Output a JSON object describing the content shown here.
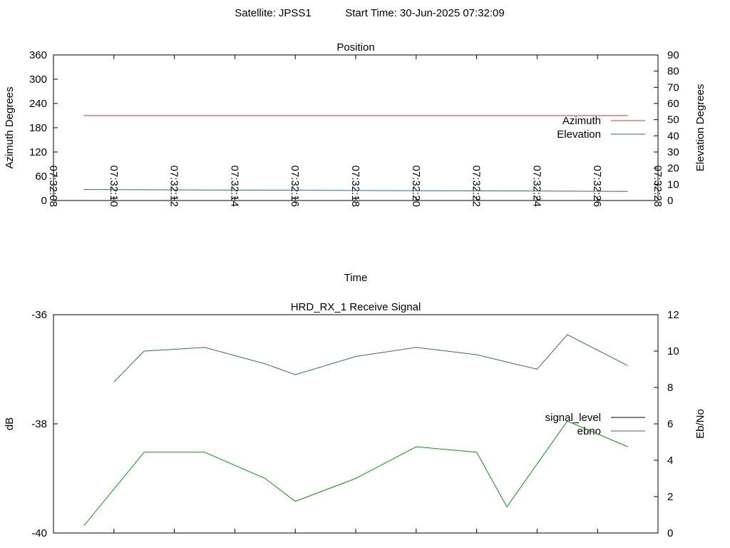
{
  "header": {
    "satellite": "Satellite: JPSS1",
    "start_time": "Start Time: 30-Jun-2025 07:32:09"
  },
  "chart_data": [
    {
      "type": "line",
      "title": "Position",
      "xlabel": "Time",
      "ylabel": "Azimuth Degrees",
      "y2label": "Elevation Degrees",
      "xticks": [
        "07:32:08",
        "07:32:10",
        "07:32:12",
        "07:32:14",
        "07:32:16",
        "07:32:18",
        "07:32:20",
        "07:32:22",
        "07:32:24",
        "07:32:26",
        "07:32:28"
      ],
      "xlim": [
        0,
        20
      ],
      "ylim": [
        0,
        360
      ],
      "yticks": [
        0,
        60,
        120,
        180,
        240,
        300,
        360
      ],
      "y2lim": [
        0,
        90
      ],
      "y2ticks": [
        0,
        10,
        20,
        30,
        40,
        50,
        60,
        70,
        80,
        90
      ],
      "legend_position": "right",
      "series": [
        {
          "name": "Azimuth",
          "color": "#cc3333",
          "axis": "y",
          "x": [
            1,
            19
          ],
          "values": [
            210,
            210
          ]
        },
        {
          "name": "Elevation",
          "color": "#336699",
          "axis": "y2",
          "x": [
            1,
            3,
            5,
            7,
            9,
            11,
            13,
            15,
            17,
            19
          ],
          "values": [
            6.8,
            6.7,
            6.5,
            6.4,
            6.3,
            6.1,
            6.0,
            5.9,
            5.8,
            5.6
          ]
        }
      ]
    },
    {
      "type": "line",
      "title": "HRD_RX_1 Receive Signal",
      "xlabel": "",
      "ylabel": "dB",
      "y2label": "Eb/No",
      "ylim": [
        -40,
        -36
      ],
      "yticks": [
        -40,
        -38,
        -36
      ],
      "y2lim": [
        0,
        12
      ],
      "y2ticks": [
        0,
        2,
        4,
        6,
        8,
        10,
        12
      ],
      "xlim": [
        0,
        20
      ],
      "xgrid_ticks": [
        2,
        4,
        6,
        8,
        10,
        12,
        14,
        16,
        18
      ],
      "legend_position": "right",
      "series": [
        {
          "name": "signal_level",
          "color": "#000000",
          "axis": "y",
          "x": [],
          "values": []
        },
        {
          "name": "ebno",
          "color": "#336699",
          "axis": "y2",
          "x": [
            2,
            3,
            5,
            7,
            8,
            10,
            12,
            14,
            16,
            17,
            19
          ],
          "values": [
            8.3,
            10.0,
            10.2,
            9.3,
            8.7,
            9.7,
            10.2,
            9.8,
            9.0,
            10.9,
            9.2
          ]
        },
        {
          "name": "",
          "color": "#00a000",
          "axis": "y",
          "x": [
            1,
            3,
            5,
            7,
            8,
            10,
            12,
            14,
            15,
            17,
            19
          ],
          "values": [
            -39.87,
            -38.52,
            -38.52,
            -39.0,
            -39.42,
            -39.0,
            -38.42,
            -38.52,
            -39.52,
            -37.95,
            -38.42
          ]
        }
      ]
    }
  ]
}
